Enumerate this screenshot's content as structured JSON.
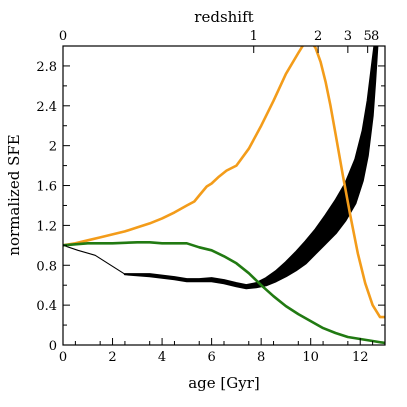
{
  "chart_data": {
    "type": "line",
    "title": "",
    "xlabel": "age [Gyr]",
    "ylabel": "normalized SFE",
    "top_axis_label": "redshift",
    "xlim": [
      0,
      13
    ],
    "ylim": [
      0,
      3.0
    ],
    "grid": false,
    "x_ticks": [
      {
        "value": 0,
        "label": "0"
      },
      {
        "value": 2,
        "label": "2"
      },
      {
        "value": 4,
        "label": "4"
      },
      {
        "value": 6,
        "label": "6"
      },
      {
        "value": 8,
        "label": "8"
      },
      {
        "value": 10,
        "label": "10"
      },
      {
        "value": 12,
        "label": "12"
      }
    ],
    "y_ticks": [
      {
        "value": 0,
        "label": "0"
      },
      {
        "value": 0.4,
        "label": "0.4"
      },
      {
        "value": 0.8,
        "label": "0.8"
      },
      {
        "value": 1.2,
        "label": "1.2"
      },
      {
        "value": 1.6,
        "label": "1.6"
      },
      {
        "value": 2.0,
        "label": "2"
      },
      {
        "value": 2.4,
        "label": "2.4"
      },
      {
        "value": 2.8,
        "label": "2.8"
      }
    ],
    "top_ticks": [
      {
        "age": 0,
        "label": "0"
      },
      {
        "age": 7.7,
        "label": "1"
      },
      {
        "age": 10.3,
        "label": "2"
      },
      {
        "age": 11.5,
        "label": "3"
      },
      {
        "age": 12.3,
        "label": "5"
      },
      {
        "age": 12.6,
        "label": "8"
      }
    ],
    "series": [
      {
        "style": "thin",
        "color": "#000000",
        "x": [
          0,
          0.6,
          1.3,
          2.0,
          2.5
        ],
        "y": [
          1.0,
          0.95,
          0.9,
          0.79,
          0.71
        ]
      },
      {
        "style": "band",
        "color": "#000000",
        "x": [
          2.5,
          3.5,
          4.5,
          5.0,
          5.5,
          6.0,
          6.5,
          7.0,
          7.4,
          7.8,
          8.2,
          8.6,
          9.0,
          9.4,
          9.8,
          10.2,
          10.6,
          11.0,
          11.4,
          11.8,
          12.1,
          12.3,
          12.5,
          12.6,
          12.7
        ],
        "y_low": [
          0.71,
          0.69,
          0.66,
          0.64,
          0.64,
          0.64,
          0.62,
          0.59,
          0.57,
          0.58,
          0.6,
          0.64,
          0.69,
          0.75,
          0.82,
          0.92,
          1.02,
          1.12,
          1.25,
          1.42,
          1.65,
          1.9,
          2.3,
          2.65,
          3.05
        ],
        "y_high": [
          0.71,
          0.71,
          0.68,
          0.66,
          0.66,
          0.67,
          0.65,
          0.62,
          0.6,
          0.62,
          0.67,
          0.74,
          0.83,
          0.93,
          1.04,
          1.16,
          1.3,
          1.45,
          1.62,
          1.86,
          2.15,
          2.45,
          2.85,
          3.05,
          3.1
        ]
      },
      {
        "style": "line",
        "color": "#f39c1a",
        "x": [
          0,
          0.5,
          1.0,
          1.5,
          2.0,
          2.5,
          3.0,
          3.5,
          4.0,
          4.5,
          5.0,
          5.3,
          5.5,
          5.8,
          6.0,
          6.3,
          6.6,
          7.0,
          7.5,
          8.0,
          8.5,
          9.0,
          9.5,
          9.8,
          10.0,
          10.2,
          10.4,
          10.6,
          10.8,
          11.0,
          11.3,
          11.6,
          11.9,
          12.2,
          12.5,
          12.8,
          13.0
        ],
        "y": [
          1.0,
          1.02,
          1.05,
          1.08,
          1.11,
          1.14,
          1.18,
          1.22,
          1.27,
          1.33,
          1.4,
          1.44,
          1.5,
          1.59,
          1.62,
          1.69,
          1.75,
          1.8,
          1.97,
          2.2,
          2.45,
          2.72,
          2.93,
          3.05,
          3.05,
          2.98,
          2.84,
          2.64,
          2.4,
          2.12,
          1.7,
          1.3,
          0.92,
          0.62,
          0.4,
          0.28,
          0.28
        ]
      },
      {
        "style": "line",
        "color": "#217a12",
        "x": [
          0,
          0.5,
          1.0,
          2.0,
          3.0,
          3.5,
          4.0,
          4.5,
          5.0,
          5.5,
          6.0,
          6.5,
          7.0,
          7.5,
          8.0,
          8.5,
          9.0,
          9.5,
          10.0,
          10.5,
          11.0,
          11.5,
          12.0,
          12.5,
          13.0
        ],
        "y": [
          1.0,
          1.01,
          1.02,
          1.02,
          1.03,
          1.03,
          1.02,
          1.02,
          1.02,
          0.98,
          0.95,
          0.89,
          0.82,
          0.72,
          0.6,
          0.49,
          0.39,
          0.31,
          0.24,
          0.17,
          0.12,
          0.08,
          0.06,
          0.04,
          0.02
        ]
      }
    ]
  }
}
